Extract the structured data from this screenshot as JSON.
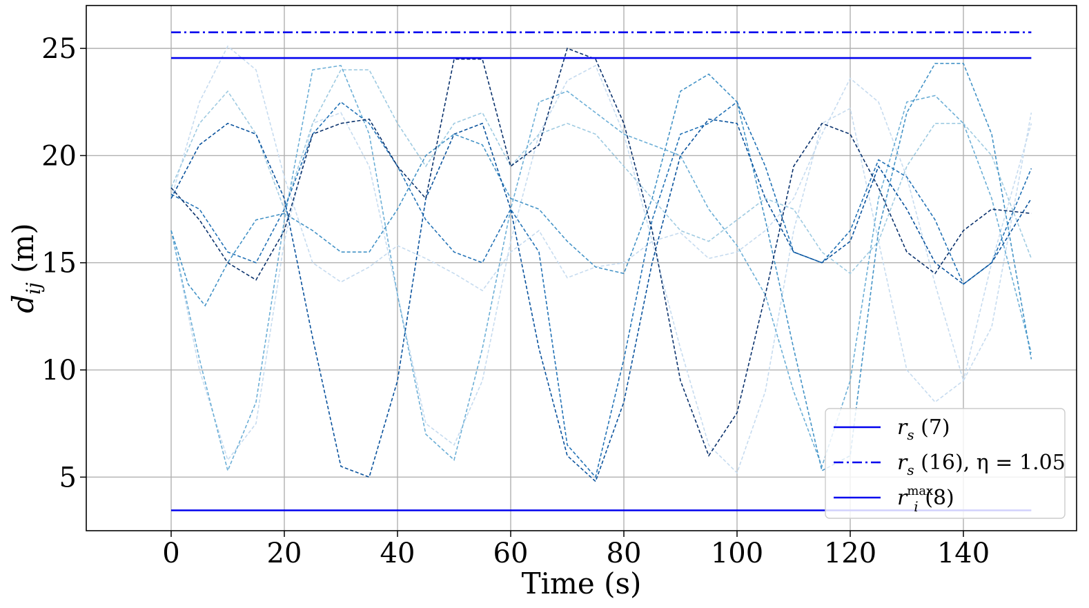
{
  "chart_data": {
    "type": "line",
    "xlabel": "Time (s)",
    "ylabel_main": "d",
    "ylabel_sub": "ij",
    "ylabel_unit": " (m)",
    "xlim": [
      -15,
      160
    ],
    "ylim": [
      2.5,
      27
    ],
    "xticks": [
      0,
      20,
      40,
      60,
      80,
      100,
      120,
      140
    ],
    "yticks": [
      5,
      10,
      15,
      20,
      25
    ],
    "grid": true,
    "legend_position": "lower-right",
    "reference_lines": [
      {
        "id": "rs7",
        "y": 24.55,
        "x0": 0,
        "x1": 152,
        "style": "solid",
        "color": "#0000ee",
        "label_math": "r",
        "label_sub": "s",
        "label_sup": "",
        "label_rest": " (7)"
      },
      {
        "id": "rs16",
        "y": 25.75,
        "x0": 0,
        "x1": 152,
        "style": "dashdot",
        "color": "#0000ee",
        "label_math": "r",
        "label_sub": "s",
        "label_sup": "",
        "label_rest": " (16), η = 1.05"
      },
      {
        "id": "rimax",
        "y": 3.45,
        "x0": 0,
        "x1": 152,
        "style": "solid",
        "color": "#0000ee",
        "label_math": "r",
        "label_sub": "i",
        "label_sup": "max",
        "label_rest": " (8)"
      }
    ],
    "series": [
      {
        "color": "#c6dbef",
        "x": [
          0,
          5,
          10,
          15,
          20,
          25,
          30,
          35,
          40,
          45,
          50,
          55,
          60,
          65,
          70,
          75,
          80,
          85,
          90,
          95,
          100,
          105,
          110,
          115,
          120,
          125,
          130,
          135,
          140,
          145,
          152
        ],
        "y": [
          18.0,
          22.5,
          25.1,
          24.0,
          19.0,
          15.0,
          14.1,
          14.8,
          15.8,
          15.2,
          14.5,
          13.7,
          15.5,
          16.5,
          14.3,
          14.8,
          15.0,
          16.0,
          16.4,
          15.2,
          15.5,
          16.5,
          18.0,
          21.0,
          23.6,
          22.5,
          19.0,
          14.0,
          9.5,
          12.0,
          22.0
        ]
      },
      {
        "color": "#c6dbef",
        "x": [
          0,
          5,
          10,
          15,
          20,
          25,
          30,
          35,
          40,
          45,
          50,
          55,
          60,
          65,
          70,
          75,
          80,
          85,
          90,
          95,
          100,
          105,
          110,
          115,
          120,
          125,
          130,
          135,
          140,
          145,
          152
        ],
        "y": [
          16.5,
          10.0,
          5.8,
          7.5,
          16.0,
          21.5,
          22.0,
          19.5,
          13.5,
          7.5,
          6.5,
          9.5,
          16.0,
          21.0,
          23.5,
          24.2,
          21.0,
          16.0,
          11.0,
          6.5,
          5.2,
          9.0,
          16.5,
          21.5,
          22.2,
          16.0,
          10.0,
          8.5,
          9.5,
          15.0,
          21.5
        ]
      },
      {
        "color": "#9ecae1",
        "x": [
          0,
          5,
          10,
          15,
          20,
          25,
          30,
          35,
          40,
          45,
          50,
          55,
          60,
          65,
          70,
          75,
          80,
          85,
          90,
          95,
          100,
          105,
          110,
          115,
          120,
          125,
          130,
          135,
          140,
          145,
          152
        ],
        "y": [
          18.5,
          21.5,
          23.0,
          21.0,
          17.5,
          21.5,
          24.0,
          24.0,
          21.5,
          19.5,
          21.5,
          22.0,
          19.5,
          21.0,
          21.5,
          21.0,
          19.5,
          18.0,
          16.5,
          16.0,
          17.0,
          18.0,
          17.5,
          15.5,
          14.5,
          16.0,
          19.5,
          21.5,
          21.5,
          20.0,
          15.2
        ]
      },
      {
        "color": "#6baed6",
        "x": [
          0,
          5,
          10,
          15,
          20,
          25,
          30,
          35,
          40,
          45,
          50,
          55,
          60,
          65,
          70,
          75,
          80,
          85,
          90,
          95,
          100,
          105,
          110,
          115,
          120,
          125,
          130,
          135,
          140,
          145,
          152
        ],
        "y": [
          16.5,
          10.5,
          5.3,
          8.5,
          17.0,
          24.0,
          24.2,
          21.0,
          13.5,
          7.0,
          5.8,
          11.0,
          17.5,
          22.5,
          23.0,
          22.0,
          21.0,
          20.5,
          20.0,
          17.5,
          15.8,
          13.5,
          9.0,
          5.5,
          9.5,
          18.0,
          22.5,
          22.8,
          21.5,
          18.0,
          10.8
        ]
      },
      {
        "color": "#4292c6",
        "x": [
          0,
          3,
          6,
          10,
          15,
          20,
          25,
          30,
          35,
          40,
          45,
          50,
          55,
          60,
          65,
          70,
          75,
          80,
          85,
          90,
          95,
          100,
          105,
          110,
          115,
          120,
          125,
          130,
          135,
          140,
          145,
          152
        ],
        "y": [
          16.5,
          14.0,
          13.0,
          15.0,
          17.0,
          17.3,
          16.5,
          15.5,
          15.5,
          17.5,
          20.0,
          21.0,
          20.5,
          18.0,
          17.5,
          16.0,
          14.8,
          14.5,
          18.0,
          23.0,
          23.8,
          22.5,
          17.0,
          11.0,
          5.3,
          6.0,
          16.5,
          22.0,
          24.3,
          24.3,
          21.0,
          10.5
        ]
      },
      {
        "color": "#2171b5",
        "x": [
          0,
          5,
          10,
          15,
          20,
          25,
          30,
          35,
          40,
          45,
          50,
          55,
          60,
          65,
          70,
          75,
          80,
          85,
          90,
          95,
          100,
          105,
          110,
          115,
          120,
          125,
          130,
          135,
          140,
          145,
          152
        ],
        "y": [
          18.2,
          17.5,
          15.5,
          15.0,
          17.5,
          21.0,
          22.5,
          21.5,
          19.5,
          17.0,
          15.5,
          15.0,
          17.5,
          15.5,
          6.5,
          5.0,
          10.5,
          17.0,
          21.0,
          21.5,
          22.5,
          19.5,
          15.5,
          15.0,
          16.5,
          19.8,
          19.0,
          17.0,
          14.0,
          15.0,
          19.4
        ]
      },
      {
        "color": "#08519c",
        "x": [
          0,
          5,
          10,
          15,
          20,
          25,
          30,
          35,
          40,
          45,
          50,
          55,
          60,
          65,
          70,
          75,
          80,
          85,
          90,
          95,
          100,
          105,
          110,
          115,
          120,
          125,
          130,
          135,
          140,
          145,
          152
        ],
        "y": [
          18.0,
          20.5,
          21.5,
          21.0,
          18.0,
          11.5,
          5.5,
          5.0,
          9.5,
          18.0,
          21.0,
          21.5,
          17.5,
          11.0,
          6.0,
          4.8,
          8.5,
          15.0,
          20.0,
          21.7,
          21.5,
          18.0,
          15.5,
          15.0,
          16.0,
          19.5,
          17.5,
          15.0,
          14.0,
          15.0,
          18.0
        ]
      },
      {
        "color": "#08306b",
        "x": [
          0,
          5,
          10,
          15,
          20,
          25,
          30,
          35,
          40,
          45,
          50,
          55,
          60,
          65,
          70,
          75,
          80,
          85,
          90,
          95,
          100,
          105,
          110,
          115,
          120,
          125,
          130,
          135,
          140,
          145,
          152
        ],
        "y": [
          18.5,
          17.0,
          15.0,
          14.2,
          16.5,
          21.0,
          21.5,
          21.7,
          19.5,
          18.0,
          24.5,
          24.5,
          19.5,
          20.5,
          25.0,
          24.5,
          21.5,
          16.5,
          9.5,
          6.0,
          8.0,
          13.5,
          19.5,
          21.5,
          21.0,
          18.5,
          15.5,
          14.5,
          16.5,
          17.5,
          17.3
        ]
      }
    ]
  }
}
